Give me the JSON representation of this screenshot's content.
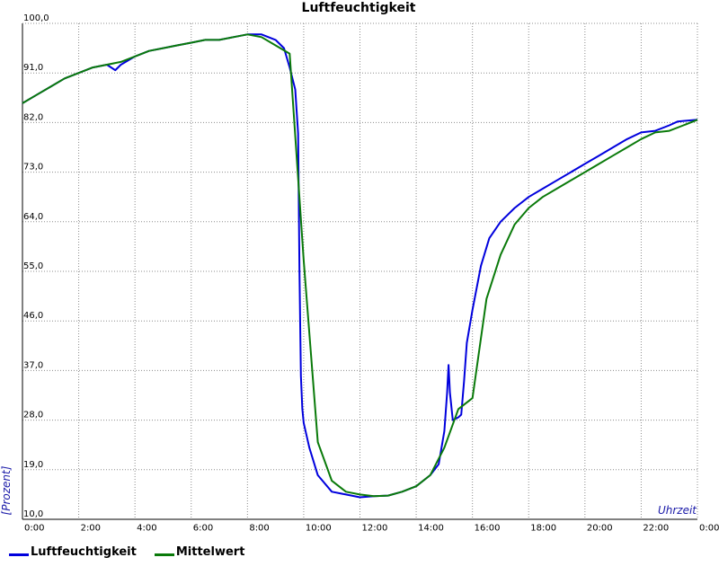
{
  "chart_data": {
    "type": "line",
    "title": "Luftfeuchtigkeit",
    "xlabel": "Uhrzeit",
    "ylabel": "[Prozent]",
    "xlim": [
      0,
      24
    ],
    "ylim": [
      10,
      100
    ],
    "x_ticks": [
      "0:00",
      "2:00",
      "4:00",
      "6:00",
      "8:00",
      "10:00",
      "12:00",
      "14:00",
      "16:00",
      "18:00",
      "20:00",
      "22:00",
      "0:00"
    ],
    "y_ticks": [
      "10,0",
      "19,0",
      "28,0",
      "37,0",
      "46,0",
      "55,0",
      "64,0",
      "73,0",
      "82,0",
      "91,0",
      "100,0"
    ],
    "grid": true,
    "legend_position": "bottom-left",
    "series": [
      {
        "name": "Luftfeuchtigkeit",
        "color": "#0000dd",
        "x": [
          0,
          0.5,
          1,
          1.5,
          2,
          2.5,
          3,
          3.3,
          3.5,
          4,
          4.5,
          5,
          5.5,
          6,
          6.5,
          7,
          7.5,
          8,
          8.5,
          9,
          9.3,
          9.5,
          9.7,
          9.8,
          9.85,
          9.9,
          9.95,
          10,
          10.2,
          10.5,
          11,
          11.5,
          12,
          12.5,
          13,
          13.5,
          14,
          14.5,
          14.8,
          15,
          15.1,
          15.15,
          15.2,
          15.3,
          15.5,
          15.6,
          15.7,
          15.8,
          16,
          16.3,
          16.6,
          17,
          17.5,
          18,
          18.5,
          19,
          19.5,
          20,
          20.5,
          21,
          21.5,
          22,
          22.5,
          23,
          23.3,
          24
        ],
        "y": [
          85.5,
          87,
          88.5,
          90,
          91,
          92,
          92.5,
          91.5,
          92.5,
          94,
          95,
          95.5,
          96,
          96.5,
          97,
          97,
          97.5,
          98,
          98,
          97,
          95.5,
          92,
          88,
          80,
          55,
          36,
          30,
          27.5,
          23,
          18,
          15,
          14.5,
          14,
          14.2,
          14.3,
          15,
          16,
          18,
          20,
          26,
          33,
          38,
          33,
          28,
          28.5,
          29,
          35,
          42,
          48,
          56,
          61,
          64,
          66.5,
          68.5,
          70,
          71.5,
          73,
          74.5,
          76,
          77.5,
          79,
          80.2,
          80.5,
          81.5,
          82.2,
          82.5
        ]
      },
      {
        "name": "Mittelwert",
        "color": "#0a7a0a",
        "x": [
          0,
          0.5,
          1,
          1.5,
          2,
          2.5,
          3,
          3.5,
          4,
          4.5,
          5,
          5.5,
          6,
          6.5,
          7,
          7.5,
          8,
          8.5,
          9,
          9.5,
          10,
          10.5,
          11,
          11.5,
          12,
          12.5,
          13,
          13.5,
          14,
          14.5,
          15,
          15.5,
          16,
          16.5,
          17,
          17.5,
          18,
          18.5,
          19,
          19.5,
          20,
          20.5,
          21,
          21.5,
          22,
          22.5,
          23,
          23.5,
          24
        ],
        "y": [
          85.5,
          87,
          88.5,
          90,
          91,
          92,
          92.5,
          93,
          94,
          95,
          95.5,
          96,
          96.5,
          97,
          97,
          97.5,
          98,
          97.5,
          96,
          94.5,
          57,
          24,
          17,
          15,
          14.5,
          14.2,
          14.3,
          15,
          16,
          18,
          23,
          30,
          32,
          50,
          58,
          63.5,
          66.5,
          68.5,
          70,
          71.5,
          73,
          74.5,
          76,
          77.5,
          79,
          80.2,
          80.5,
          81.5,
          82.5
        ]
      }
    ]
  }
}
